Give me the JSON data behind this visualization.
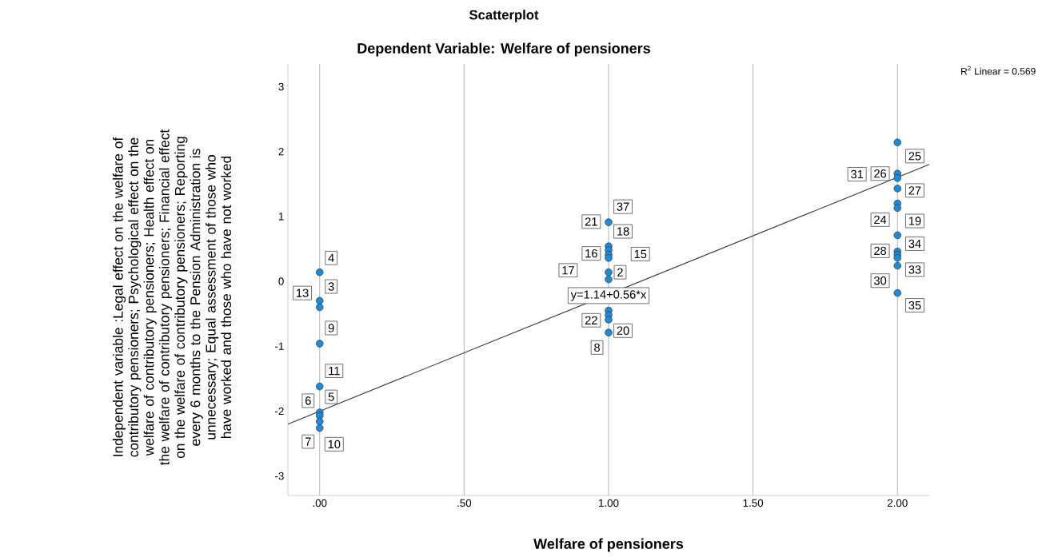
{
  "chart_data": {
    "type": "scatter",
    "title": "Scatterplot",
    "subtitle": "Dependent Variable: Welfare of pensioners",
    "xlabel": "Welfare of pensioners",
    "ylabel": "Independent variable :Legal effect on the welfare of contributory pensioners; Psychological effect on the welfare of contributory pensioners; Health effect on the welfare of contributory pensioners; Financial effect on the welfare of contributory pensioners; Reporting every 6 months to the Pension Administration is unnecessary; Equal assessment of those who have worked and those who have not worked",
    "series": [
      {
        "color": "#1f8ad8",
        "x": [
          0,
          0,
          0,
          0,
          0,
          0,
          0,
          0,
          0,
          1,
          1,
          1,
          1,
          1,
          1,
          1,
          1,
          1,
          1,
          1,
          2,
          2,
          2,
          2,
          2,
          2,
          2,
          2,
          2,
          2,
          2,
          2
        ],
        "values": [
          0.14,
          -0.3,
          -0.4,
          -0.96,
          -1.62,
          -2.02,
          -2.07,
          -2.16,
          -2.26,
          0.91,
          0.54,
          0.48,
          0.41,
          0.36,
          0.14,
          0.03,
          -0.45,
          -0.52,
          -0.59,
          -0.79,
          2.14,
          1.66,
          1.59,
          1.43,
          1.2,
          1.13,
          0.71,
          0.46,
          0.41,
          0.36,
          0.24,
          -0.18
        ]
      },
      {
        "type": "line",
        "color": "#333333",
        "x": [
          -0.11,
          2.11
        ],
        "values": [
          -2.2,
          1.8
        ]
      }
    ],
    "xlim": [
      -0.11,
      2.11
    ],
    "ylim": [
      -3.3,
      3.35
    ],
    "xticks": [
      {
        "value": 0,
        "label": ".00"
      },
      {
        "value": 0.5,
        "label": ".50"
      },
      {
        "value": 1,
        "label": "1.00"
      },
      {
        "value": 1.5,
        "label": "1.50"
      },
      {
        "value": 2,
        "label": "2.00"
      }
    ],
    "yticks": [
      -3,
      -2,
      -1,
      0,
      1,
      2,
      3
    ],
    "grid": "x",
    "annotations": [
      {
        "text": "4",
        "x": 0.04,
        "y": 0.36
      },
      {
        "text": "3",
        "x": 0.04,
        "y": -0.08
      },
      {
        "text": "13",
        "x": -0.06,
        "y": -0.18
      },
      {
        "text": "9",
        "x": 0.04,
        "y": -0.72
      },
      {
        "text": "11",
        "x": 0.05,
        "y": -1.38
      },
      {
        "text": "5",
        "x": 0.04,
        "y": -1.78
      },
      {
        "text": "6",
        "x": -0.04,
        "y": -1.84
      },
      {
        "text": "7",
        "x": -0.04,
        "y": -2.47
      },
      {
        "text": "10",
        "x": 0.05,
        "y": -2.51
      },
      {
        "text": "37",
        "x": 1.05,
        "y": 1.15
      },
      {
        "text": "21",
        "x": 0.94,
        "y": 0.92
      },
      {
        "text": "18",
        "x": 1.05,
        "y": 0.77
      },
      {
        "text": "16",
        "x": 0.94,
        "y": 0.43
      },
      {
        "text": "15",
        "x": 1.11,
        "y": 0.42
      },
      {
        "text": "17",
        "x": 0.86,
        "y": 0.17
      },
      {
        "text": "2",
        "x": 1.04,
        "y": 0.14
      },
      {
        "text": "22",
        "x": 0.94,
        "y": -0.6
      },
      {
        "text": "20",
        "x": 1.05,
        "y": -0.76
      },
      {
        "text": "8",
        "x": 0.96,
        "y": -1.02
      },
      {
        "text": "y=1.14+0.56*x",
        "x": 1.0,
        "y": -0.22
      },
      {
        "text": "25",
        "x": 2.06,
        "y": 1.93
      },
      {
        "text": "31",
        "x": 1.86,
        "y": 1.65
      },
      {
        "text": "26",
        "x": 1.94,
        "y": 1.66
      },
      {
        "text": "27",
        "x": 2.06,
        "y": 1.4
      },
      {
        "text": "24",
        "x": 1.94,
        "y": 0.95
      },
      {
        "text": "19",
        "x": 2.06,
        "y": 0.93
      },
      {
        "text": "34",
        "x": 2.06,
        "y": 0.58
      },
      {
        "text": "28",
        "x": 1.94,
        "y": 0.47
      },
      {
        "text": "33",
        "x": 2.06,
        "y": 0.18
      },
      {
        "text": "30",
        "x": 1.94,
        "y": 0.01
      },
      {
        "text": "35",
        "x": 2.06,
        "y": -0.37
      },
      "R$^{2}$ Linear = 0.569"
    ]
  }
}
